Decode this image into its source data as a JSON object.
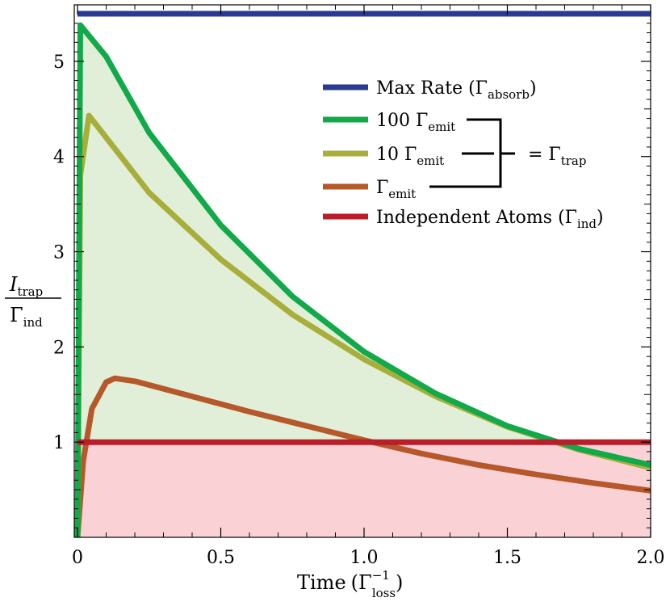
{
  "chart_data": {
    "type": "line",
    "xlabel": "Time",
    "xlabel_unit_base": "Γ",
    "xlabel_unit_sup": "−1",
    "xlabel_unit_sub": "loss",
    "ylabel_num_base": "I",
    "ylabel_num_sub": "trap",
    "ylabel_den_base": "Γ",
    "ylabel_den_sub": "ind",
    "xlim": [
      0,
      2.0
    ],
    "ylim": [
      0,
      5.5
    ],
    "x_ticks": [
      0,
      0.5,
      1.0,
      1.5,
      2.0
    ],
    "x_tick_labels": [
      "0",
      "0.5",
      "1.0",
      "1.5",
      "2.0"
    ],
    "y_ticks": [
      1,
      2,
      3,
      4,
      5
    ],
    "y_tick_labels": [
      "1",
      "2",
      "3",
      "4",
      "5"
    ],
    "grid": false,
    "legend_position": "top-right",
    "bracket_label_base": "= Γ",
    "bracket_label_sub": "trap",
    "series": [
      {
        "legend_base": "Max Rate (Γ",
        "legend_sub": "absorb",
        "legend_tail": ")",
        "color": "#2a3a94",
        "x": [
          0,
          2.0
        ],
        "y": [
          5.5,
          5.5
        ]
      },
      {
        "legend_base": "100 Γ",
        "legend_sub": "emit",
        "legend_tail": "",
        "color": "#12a94b",
        "x": [
          0,
          0.01,
          0.1,
          0.25,
          0.5,
          0.75,
          1.0,
          1.25,
          1.5,
          1.75,
          2.0
        ],
        "y": [
          0,
          5.38,
          5.05,
          4.25,
          3.28,
          2.53,
          1.95,
          1.51,
          1.17,
          0.93,
          0.76
        ]
      },
      {
        "legend_base": "10 Γ",
        "legend_sub": "emit",
        "legend_tail": "",
        "color": "#a8ae3a",
        "x": [
          0,
          0.01,
          0.04,
          0.1,
          0.25,
          0.5,
          0.75,
          1.0,
          1.25,
          1.5,
          1.75,
          2.0
        ],
        "y": [
          0,
          3.8,
          4.43,
          4.2,
          3.62,
          2.92,
          2.34,
          1.87,
          1.48,
          1.16,
          0.92,
          0.73
        ]
      },
      {
        "legend_base": "Γ",
        "legend_sub": "emit",
        "legend_tail": "",
        "color": "#b5582a",
        "x": [
          0,
          0.02,
          0.05,
          0.1,
          0.13,
          0.2,
          0.4,
          0.6,
          0.8,
          1.0,
          1.2,
          1.4,
          1.6,
          1.8,
          2.0
        ],
        "y": [
          0,
          0.8,
          1.35,
          1.63,
          1.67,
          1.64,
          1.48,
          1.32,
          1.17,
          1.02,
          0.88,
          0.76,
          0.66,
          0.57,
          0.49
        ]
      },
      {
        "legend_base": "Independent Atoms (Γ",
        "legend_sub": "ind",
        "legend_tail": ")",
        "color": "#b81f2a",
        "x": [
          0,
          2.0
        ],
        "y": [
          1,
          1
        ]
      }
    ],
    "fill_colors": {
      "upper": "#e1efd8",
      "lower": "#fad2d6"
    }
  }
}
